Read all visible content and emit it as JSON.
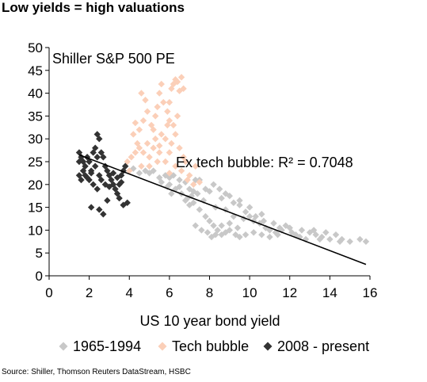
{
  "title": "Low yields = high valuations",
  "source": "Source: Shiller, Thomson Reuters DataStream, HSBC",
  "chart_data": {
    "type": "scatter",
    "xlabel": "US 10 year bond yield",
    "ylabel": "",
    "xlim": [
      0,
      16
    ],
    "ylim": [
      0,
      50
    ],
    "x_ticks": [
      "0",
      "2",
      "4",
      "6",
      "8",
      "10",
      "12",
      "14",
      "16"
    ],
    "y_ticks": [
      "0",
      "5",
      "10",
      "15",
      "20",
      "25",
      "30",
      "35",
      "40",
      "45",
      "50"
    ],
    "grid": false,
    "legend_position": "bottom",
    "annotations": {
      "inner_title": "Shiller S&P 500 PE",
      "fit_label": "Ex tech bubble: R² = 0.7048"
    },
    "trendline": {
      "from": [
        1.5,
        26.5
      ],
      "to": [
        15.8,
        2.5
      ]
    },
    "series": [
      {
        "name": "1965-1994",
        "color": "#c8c8c8",
        "points": [
          [
            4.2,
            23.5
          ],
          [
            4.5,
            22.5
          ],
          [
            4.8,
            23
          ],
          [
            5.0,
            22.5
          ],
          [
            5.2,
            23
          ],
          [
            5.5,
            21.5
          ],
          [
            5.8,
            22
          ],
          [
            6.0,
            21.5
          ],
          [
            6.2,
            22
          ],
          [
            6.5,
            21
          ],
          [
            6.8,
            20.5
          ],
          [
            7.0,
            19
          ],
          [
            7.2,
            18.5
          ],
          [
            7.4,
            18
          ],
          [
            7.5,
            21
          ],
          [
            7.8,
            19
          ],
          [
            8.0,
            18.5
          ],
          [
            8.2,
            20
          ],
          [
            8.5,
            19
          ],
          [
            8.8,
            18
          ],
          [
            9.0,
            17.5
          ],
          [
            9.2,
            16
          ],
          [
            9.5,
            15.5
          ],
          [
            9.8,
            14
          ],
          [
            10.0,
            13
          ],
          [
            10.2,
            12
          ],
          [
            10.5,
            11.5
          ],
          [
            10.8,
            10.5
          ],
          [
            11.0,
            10
          ],
          [
            11.3,
            9.5
          ],
          [
            11.6,
            10
          ],
          [
            12.0,
            10.5
          ],
          [
            12.3,
            9
          ],
          [
            12.6,
            10
          ],
          [
            13.0,
            9.5
          ],
          [
            13.3,
            9
          ],
          [
            13.6,
            8.5
          ],
          [
            14.0,
            8
          ],
          [
            14.3,
            9
          ],
          [
            14.6,
            8
          ],
          [
            15.0,
            7.5
          ],
          [
            15.5,
            8
          ],
          [
            15.8,
            7.5
          ],
          [
            7.2,
            16
          ],
          [
            7.5,
            14.5
          ],
          [
            7.8,
            13
          ],
          [
            8.0,
            12
          ],
          [
            8.2,
            11
          ],
          [
            8.4,
            10
          ],
          [
            8.6,
            9
          ],
          [
            8.8,
            9.5
          ],
          [
            9.0,
            10
          ],
          [
            9.3,
            9
          ],
          [
            9.5,
            8.5
          ],
          [
            9.8,
            9
          ],
          [
            10.2,
            9.5
          ],
          [
            10.6,
            9
          ],
          [
            11.0,
            8.5
          ],
          [
            11.4,
            9
          ],
          [
            7.3,
            11
          ],
          [
            7.6,
            10
          ],
          [
            7.9,
            9.5
          ],
          [
            8.1,
            8.5
          ],
          [
            8.3,
            9
          ],
          [
            8.6,
            11
          ],
          [
            9.0,
            11.5
          ],
          [
            9.4,
            10.5
          ],
          [
            9.7,
            12.5
          ],
          [
            10.3,
            13
          ],
          [
            10.7,
            12
          ],
          [
            6.0,
            20
          ],
          [
            6.3,
            19
          ],
          [
            6.6,
            18
          ],
          [
            6.9,
            17
          ],
          [
            7.1,
            17.5
          ],
          [
            6.5,
            19.5
          ],
          [
            6.8,
            16.5
          ],
          [
            7.0,
            15.5
          ],
          [
            7.7,
            16.5
          ],
          [
            8.3,
            15
          ],
          [
            8.8,
            14.5
          ],
          [
            9.2,
            13
          ],
          [
            5.6,
            20.5
          ],
          [
            5.9,
            19.5
          ],
          [
            6.1,
            18
          ],
          [
            7.3,
            21
          ],
          [
            8.6,
            17
          ],
          [
            9.5,
            16.5
          ],
          [
            10.0,
            15
          ],
          [
            10.6,
            13.5
          ],
          [
            11.2,
            11.5
          ],
          [
            11.8,
            11
          ],
          [
            12.5,
            8.5
          ],
          [
            13.2,
            10
          ],
          [
            13.8,
            9.5
          ],
          [
            14.5,
            7.5
          ],
          [
            12.8,
            8
          ],
          [
            11.5,
            10.5
          ],
          [
            12.1,
            9.5
          ],
          [
            13.5,
            8
          ]
        ]
      },
      {
        "name": "Tech bubble",
        "color": "#fbcfb8",
        "points": [
          [
            3.9,
            25
          ],
          [
            4.1,
            26
          ],
          [
            4.3,
            27
          ],
          [
            4.5,
            28
          ],
          [
            4.7,
            27
          ],
          [
            4.9,
            29
          ],
          [
            5.0,
            26
          ],
          [
            5.2,
            28
          ],
          [
            5.3,
            30
          ],
          [
            5.5,
            27
          ],
          [
            5.6,
            31
          ],
          [
            5.8,
            30
          ],
          [
            6.0,
            34
          ],
          [
            6.0,
            38
          ],
          [
            6.1,
            41
          ],
          [
            6.2,
            42
          ],
          [
            6.3,
            43
          ],
          [
            6.4,
            42.5
          ],
          [
            6.5,
            40.5
          ],
          [
            6.6,
            43.5
          ],
          [
            6.7,
            41
          ],
          [
            6.4,
            35
          ],
          [
            6.2,
            33
          ],
          [
            5.9,
            36
          ],
          [
            5.7,
            38
          ],
          [
            5.5,
            40
          ],
          [
            5.6,
            42
          ],
          [
            5.4,
            37
          ],
          [
            4.5,
            32
          ],
          [
            4.7,
            34
          ],
          [
            4.9,
            36
          ],
          [
            4.8,
            38.5
          ],
          [
            4.6,
            40
          ],
          [
            4.4,
            29
          ],
          [
            4.2,
            31
          ],
          [
            5.1,
            33
          ],
          [
            5.3,
            35
          ],
          [
            5.0,
            24
          ],
          [
            5.4,
            25
          ],
          [
            6.0,
            27
          ],
          [
            6.5,
            28
          ],
          [
            6.8,
            25
          ],
          [
            7.0,
            22
          ],
          [
            6.9,
            21
          ],
          [
            6.6,
            23
          ],
          [
            6.3,
            24
          ],
          [
            6.0,
            22.5
          ],
          [
            5.8,
            25
          ],
          [
            4.6,
            24
          ],
          [
            4.0,
            23
          ],
          [
            7.2,
            20
          ],
          [
            7.5,
            20.5
          ],
          [
            5.2,
            32
          ],
          [
            5.9,
            33
          ],
          [
            6.1,
            29
          ],
          [
            6.3,
            31
          ],
          [
            5.5,
            28.5
          ],
          [
            4.3,
            33.5
          ],
          [
            6.7,
            26
          ],
          [
            7.3,
            24
          ]
        ]
      },
      {
        "name": "2008 - present",
        "color": "#333333",
        "points": [
          [
            1.5,
            27
          ],
          [
            1.6,
            26
          ],
          [
            1.7,
            25
          ],
          [
            1.8,
            24
          ],
          [
            1.9,
            26
          ],
          [
            2.0,
            25
          ],
          [
            2.1,
            23
          ],
          [
            2.2,
            27
          ],
          [
            2.3,
            28
          ],
          [
            2.4,
            31
          ],
          [
            2.5,
            30
          ],
          [
            2.6,
            27
          ],
          [
            2.7,
            26
          ],
          [
            2.8,
            24
          ],
          [
            2.9,
            23
          ],
          [
            3.0,
            22
          ],
          [
            3.1,
            21
          ],
          [
            3.2,
            20
          ],
          [
            3.3,
            19
          ],
          [
            3.4,
            18
          ],
          [
            3.5,
            20
          ],
          [
            3.6,
            22
          ],
          [
            3.7,
            23
          ],
          [
            3.8,
            24
          ],
          [
            3.9,
            16
          ],
          [
            3.7,
            15.5
          ],
          [
            3.5,
            17
          ],
          [
            2.1,
            15
          ],
          [
            2.5,
            14.5
          ],
          [
            2.7,
            13.5
          ],
          [
            2.9,
            16.5
          ],
          [
            1.5,
            22
          ],
          [
            1.6,
            21
          ],
          [
            1.8,
            22
          ],
          [
            2.0,
            21
          ],
          [
            2.2,
            20
          ],
          [
            2.4,
            19
          ],
          [
            2.6,
            21
          ],
          [
            2.8,
            20
          ],
          [
            3.0,
            19.5
          ],
          [
            1.7,
            23
          ],
          [
            1.9,
            21.5
          ],
          [
            2.1,
            22.5
          ],
          [
            2.3,
            24
          ],
          [
            2.5,
            22
          ],
          [
            3.2,
            22.5
          ],
          [
            3.4,
            21.5
          ],
          [
            3.6,
            20.5
          ],
          [
            1.5,
            25
          ],
          [
            2.4,
            26
          ]
        ]
      }
    ]
  }
}
